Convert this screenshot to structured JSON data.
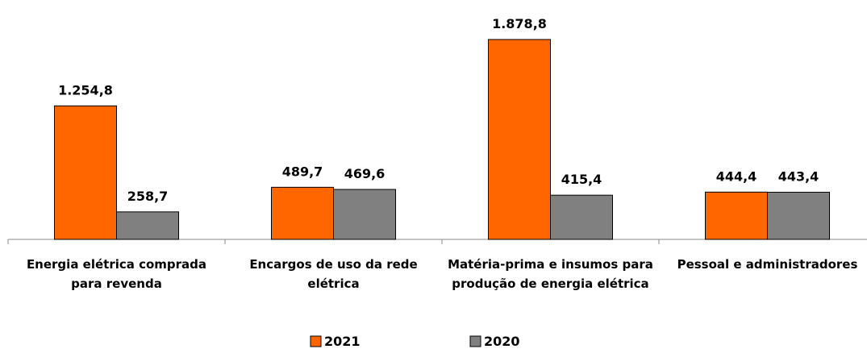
{
  "chart_data": {
    "type": "bar",
    "categories": [
      "Energia elétrica comprada para revenda",
      "Encargos de uso da rede elétrica",
      "Matéria-prima e insumos para produção de energia elétrica",
      "Pessoal e administradores"
    ],
    "series": [
      {
        "name": "2021",
        "color": "#ff6600",
        "values": [
          1254.8,
          489.7,
          1878.8,
          444.4
        ],
        "value_labels": [
          "1.254,8",
          "489,7",
          "1.878,8",
          "444,4"
        ]
      },
      {
        "name": "2020",
        "color": "#808080",
        "values": [
          258.7,
          469.6,
          415.4,
          443.4
        ],
        "value_labels": [
          "258,7",
          "469,6",
          "415,4",
          "443,4"
        ]
      }
    ],
    "ylim": [
      0,
      2250
    ],
    "legend": "bottom"
  }
}
